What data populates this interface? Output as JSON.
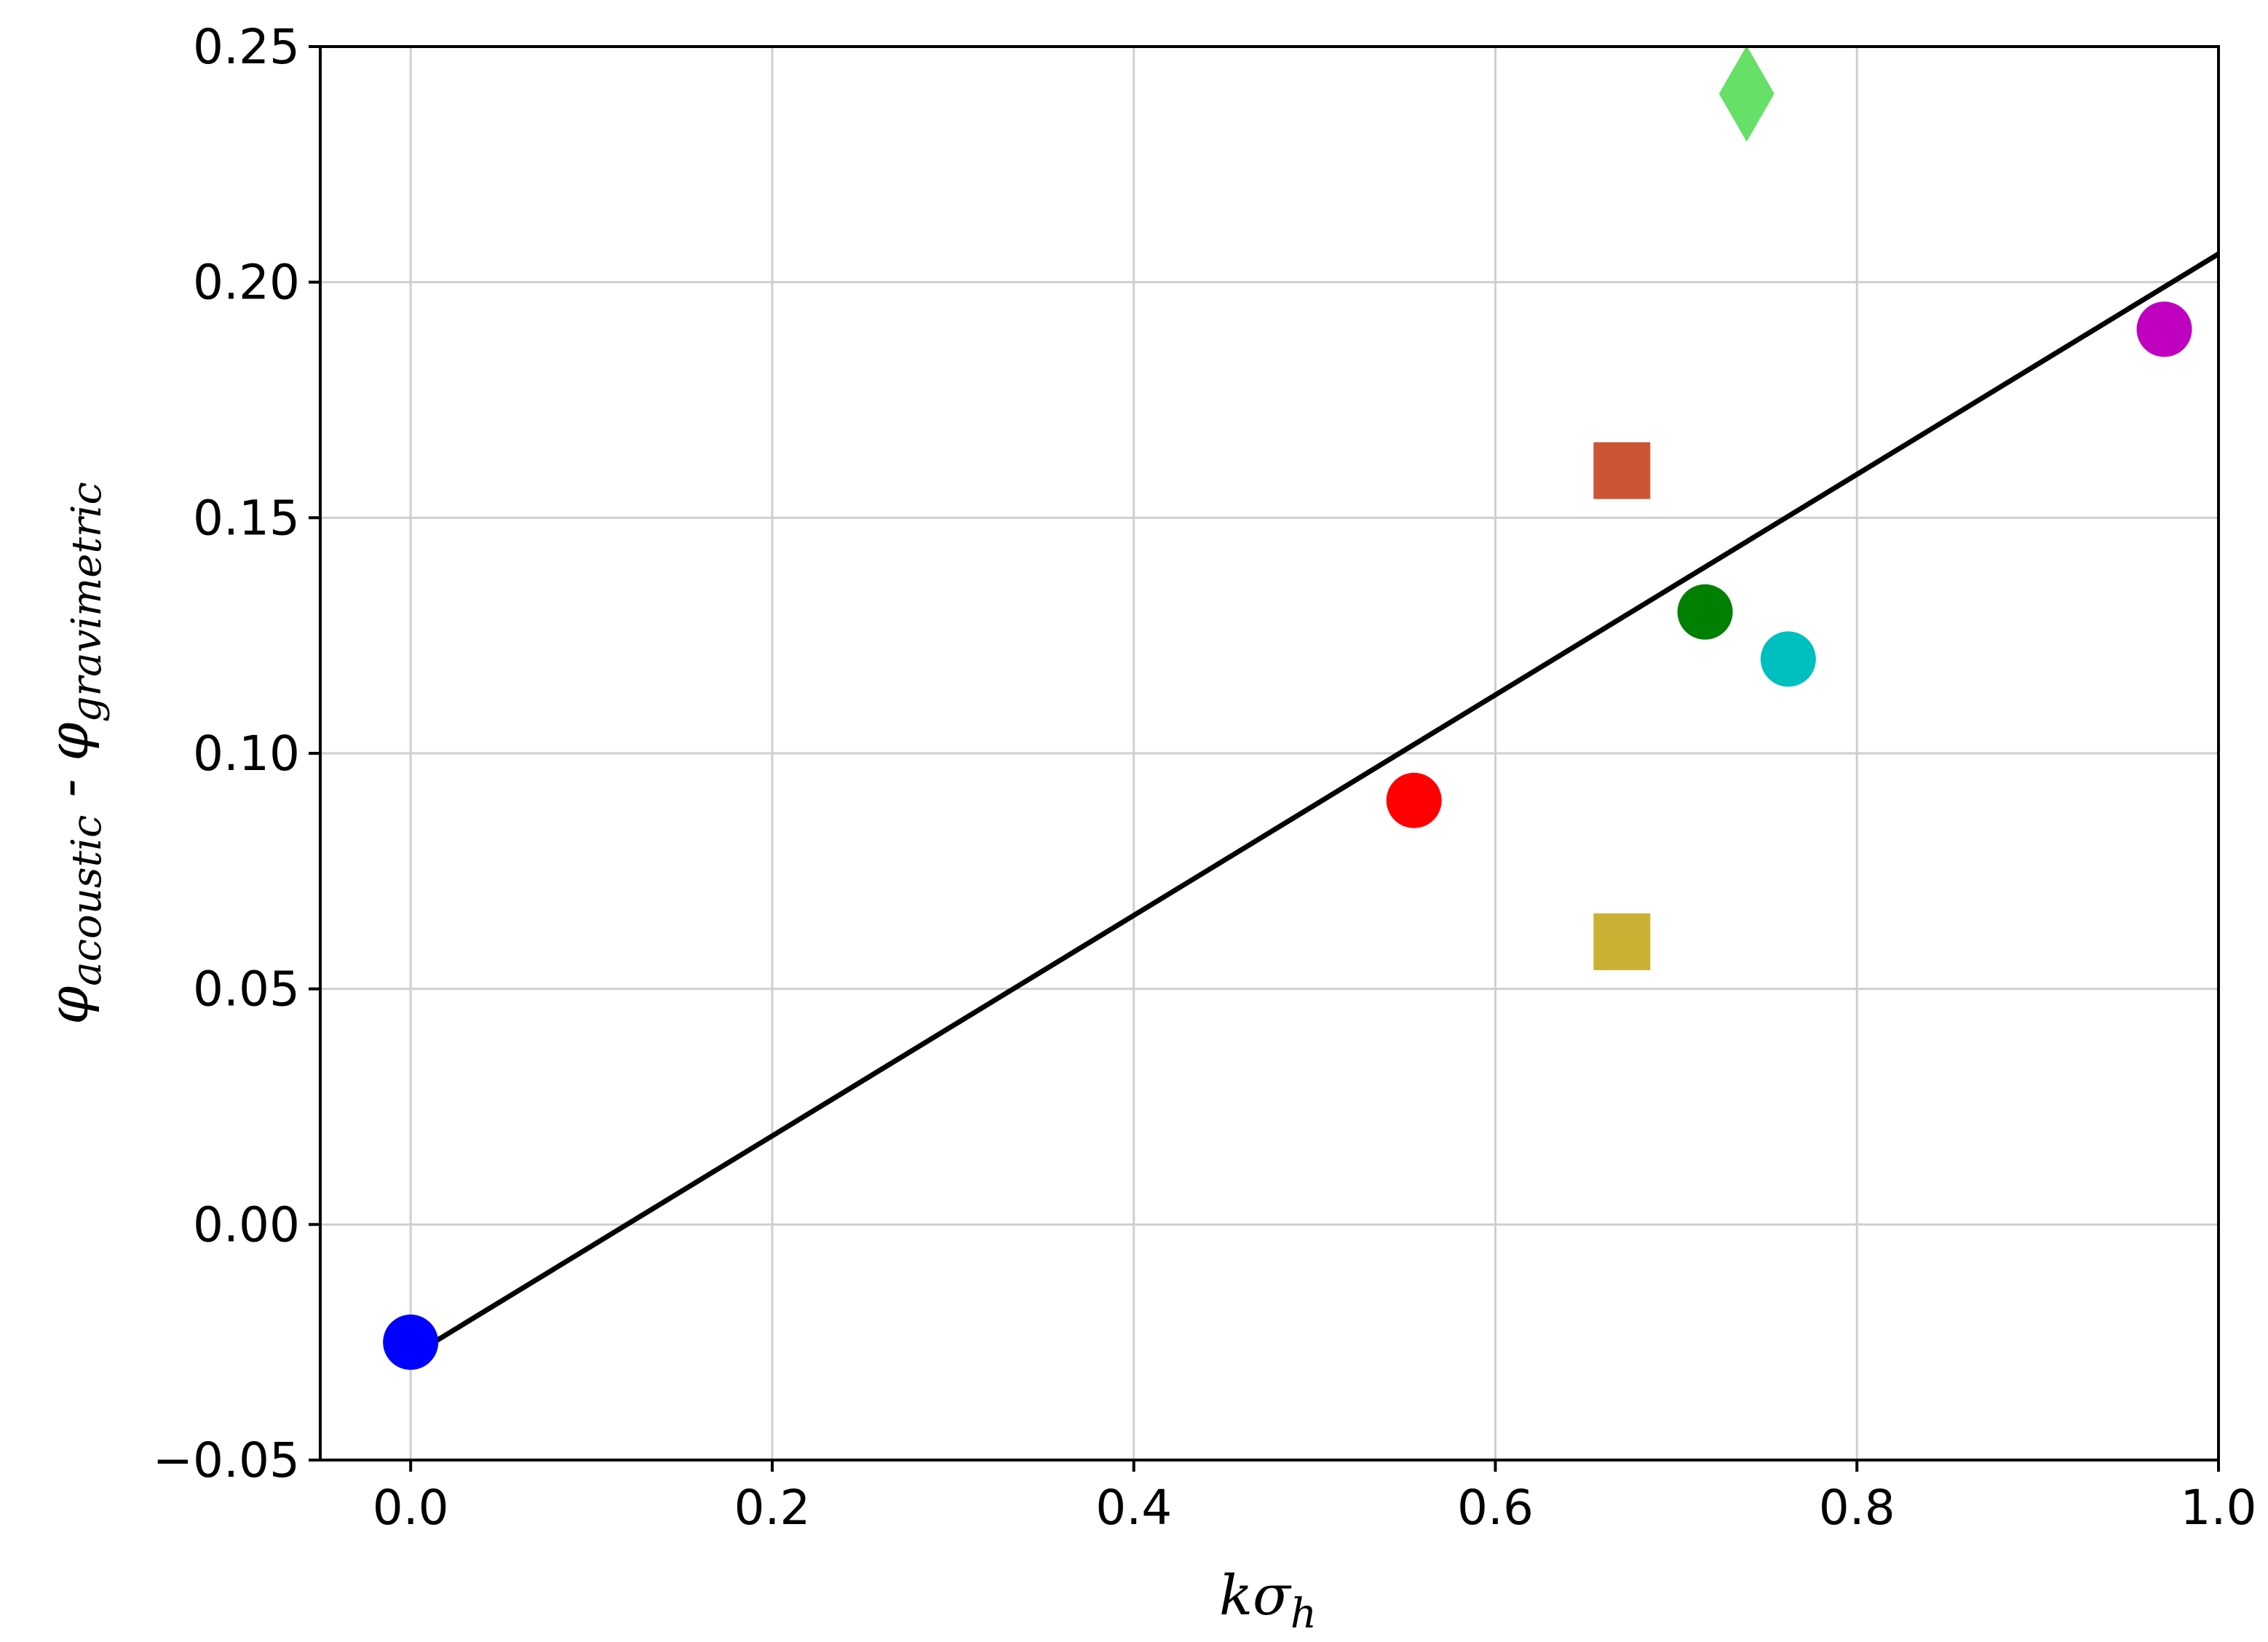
{
  "chart_data": {
    "type": "scatter",
    "title": "",
    "xlabel": {
      "main": "kσ",
      "sub": "h"
    },
    "ylabel": {
      "main1": "φ",
      "sub1": "acoustic",
      "sep": " - ",
      "main2": "φ",
      "sub2": "gravimetric"
    },
    "xlim": [
      -0.05,
      1.0
    ],
    "ylim": [
      -0.05,
      0.25
    ],
    "x_ticks": [
      0.0,
      0.2,
      0.4,
      0.6,
      0.8,
      1.0
    ],
    "x_tick_labels": [
      "0.0",
      "0.2",
      "0.4",
      "0.6",
      "0.8",
      "1.0"
    ],
    "y_ticks": [
      -0.05,
      0.0,
      0.05,
      0.1,
      0.15,
      0.2,
      0.25
    ],
    "y_tick_labels": [
      "−0.05",
      "0.00",
      "0.05",
      "0.10",
      "0.15",
      "0.20",
      "0.25"
    ],
    "grid": true,
    "legend": "none",
    "points": [
      {
        "x": 0.0,
        "y": -0.025,
        "marker": "circle",
        "color": "#0000ff"
      },
      {
        "x": 0.555,
        "y": 0.09,
        "marker": "circle",
        "color": "#ff0000"
      },
      {
        "x": 0.67,
        "y": 0.16,
        "marker": "square",
        "color": "#cc5533"
      },
      {
        "x": 0.67,
        "y": 0.06,
        "marker": "square",
        "color": "#ccb033"
      },
      {
        "x": 0.716,
        "y": 0.13,
        "marker": "circle",
        "color": "#008000"
      },
      {
        "x": 0.739,
        "y": 0.24,
        "marker": "diamond",
        "color": "#66e066"
      },
      {
        "x": 0.762,
        "y": 0.12,
        "marker": "circle",
        "color": "#00bfbf"
      },
      {
        "x": 0.97,
        "y": 0.19,
        "marker": "circle",
        "color": "#bf00bf"
      }
    ],
    "fit_line": {
      "x": [
        0.0,
        1.0
      ],
      "y": [
        -0.028,
        0.206
      ],
      "color": "#000000"
    }
  }
}
